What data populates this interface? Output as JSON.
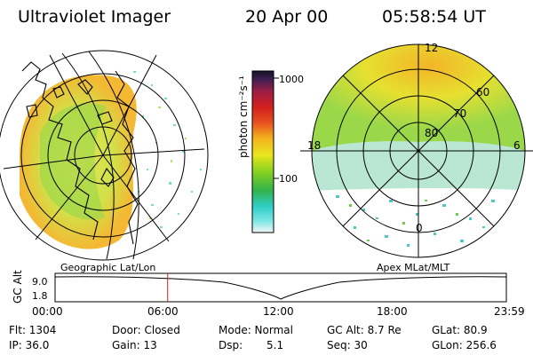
{
  "header": {
    "title": "Ultraviolet Imager",
    "date": "20 Apr 00",
    "time": "05:58:54 UT"
  },
  "panels": {
    "left_label": "Geographic Lat/Lon",
    "right_label": "Apex MLat/MLT",
    "right_lat_labels": [
      "80",
      "70",
      "60"
    ],
    "right_mlt_labels": {
      "top": "12",
      "left": "18",
      "right": "6",
      "bottom": "0"
    }
  },
  "colorbar": {
    "unit_label": "photon cm⁻²s⁻¹",
    "ticks": [
      "1000",
      "100"
    ],
    "stops": [
      "#f6f6f6",
      "#7fe6e6",
      "#2fcfc8",
      "#32b24a",
      "#8ad21e",
      "#e8e61e",
      "#f5b41e",
      "#e6501e",
      "#d21e1e",
      "#961e4a",
      "#3c1e50",
      "#141428"
    ]
  },
  "timeline": {
    "ylabel": "GC Alt",
    "ymax_label": "9.0",
    "ymin_label": "1.8",
    "xticks": [
      "00:00",
      "06:00",
      "12:00",
      "18:00",
      "23:59"
    ],
    "current_time_hours": 5.98
  },
  "stats": {
    "flt": "Flt: 1304",
    "ip": "IP: 36.0",
    "door": "Door: Closed",
    "gain": "Gain: 13",
    "mode": "Mode: Normal",
    "dsp_label": "Dsp:",
    "dsp_value": "5.1",
    "gc_alt": "GC Alt: 8.7 Re",
    "seq": "Seq: 30",
    "glat": "GLat: 80.9",
    "glon": "GLon: 256.6"
  }
}
